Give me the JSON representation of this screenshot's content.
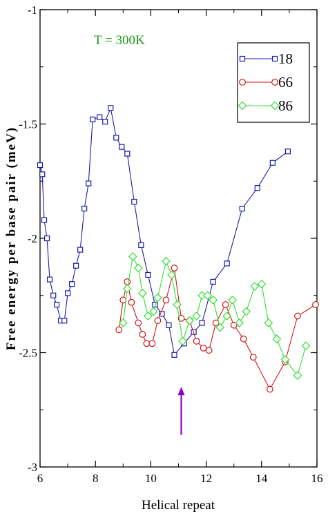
{
  "chart_data": {
    "type": "line",
    "xlabel": "Helical repeat",
    "ylabel": "Free energy per base pair (meV)",
    "xlim": [
      6,
      16
    ],
    "ylim": [
      -3,
      -1
    ],
    "x_ticks": [
      6,
      8,
      10,
      12,
      14,
      16
    ],
    "x_tick_labels": [
      "6",
      "8",
      "10",
      "12",
      "14",
      "16"
    ],
    "y_ticks": [
      -3,
      -2.5,
      -2,
      -1.5,
      -1
    ],
    "y_tick_labels": [
      "-3",
      "-2.5",
      "-2",
      "-1.5",
      "-1"
    ],
    "grid": false,
    "legend_position": "top-right",
    "annotation": {
      "text": "T = 300K",
      "color": "#1a9a1a"
    },
    "arrow": {
      "x": 11.1,
      "y_from": -2.86,
      "y_to": -2.65,
      "color": "#8a00c8"
    },
    "series": [
      {
        "name": "18",
        "color": "#1a1aa8",
        "marker": "square",
        "points": [
          [
            6.0,
            -1.68
          ],
          [
            6.08,
            -1.72
          ],
          [
            6.15,
            -1.92
          ],
          [
            6.25,
            -2.0
          ],
          [
            6.35,
            -2.18
          ],
          [
            6.48,
            -2.25
          ],
          [
            6.6,
            -2.29
          ],
          [
            6.75,
            -2.36
          ],
          [
            6.88,
            -2.36
          ],
          [
            7.0,
            -2.24
          ],
          [
            7.15,
            -2.2
          ],
          [
            7.3,
            -2.12
          ],
          [
            7.45,
            -2.05
          ],
          [
            7.6,
            -1.87
          ],
          [
            7.75,
            -1.76
          ],
          [
            7.9,
            -1.48
          ],
          [
            8.15,
            -1.47
          ],
          [
            8.35,
            -1.49
          ],
          [
            8.55,
            -1.43
          ],
          [
            8.75,
            -1.56
          ],
          [
            8.95,
            -1.6
          ],
          [
            9.15,
            -1.63
          ],
          [
            9.4,
            -1.84
          ],
          [
            9.65,
            -2.03
          ],
          [
            9.9,
            -2.16
          ],
          [
            10.15,
            -2.29
          ],
          [
            10.4,
            -2.33
          ],
          [
            10.65,
            -2.38
          ],
          [
            10.85,
            -2.51
          ],
          [
            11.2,
            -2.46
          ],
          [
            11.55,
            -2.41
          ],
          [
            11.85,
            -2.37
          ],
          [
            12.25,
            -2.19
          ],
          [
            12.75,
            -2.11
          ],
          [
            13.3,
            -1.87
          ],
          [
            13.85,
            -1.78
          ],
          [
            14.4,
            -1.67
          ],
          [
            14.95,
            -1.62
          ]
        ]
      },
      {
        "name": "66",
        "color": "#d21212",
        "marker": "circle",
        "points": [
          [
            8.85,
            -2.4
          ],
          [
            9.0,
            -2.27
          ],
          [
            9.15,
            -2.19
          ],
          [
            9.3,
            -2.28
          ],
          [
            9.55,
            -2.37
          ],
          [
            9.7,
            -2.42
          ],
          [
            9.85,
            -2.46
          ],
          [
            10.05,
            -2.46
          ],
          [
            10.25,
            -2.36
          ],
          [
            10.55,
            -2.27
          ],
          [
            10.85,
            -2.13
          ],
          [
            11.1,
            -2.35
          ],
          [
            11.4,
            -2.36
          ],
          [
            11.65,
            -2.45
          ],
          [
            11.9,
            -2.48
          ],
          [
            12.1,
            -2.49
          ],
          [
            12.35,
            -2.37
          ],
          [
            12.7,
            -2.29
          ],
          [
            13.0,
            -2.38
          ],
          [
            13.35,
            -2.44
          ],
          [
            13.7,
            -2.52
          ],
          [
            14.3,
            -2.66
          ],
          [
            14.85,
            -2.54
          ],
          [
            15.3,
            -2.34
          ],
          [
            15.95,
            -2.29
          ]
        ]
      },
      {
        "name": "86",
        "color": "#33dd33",
        "marker": "diamond",
        "points": [
          [
            9.0,
            -2.37
          ],
          [
            9.15,
            -2.22
          ],
          [
            9.35,
            -2.08
          ],
          [
            9.55,
            -2.13
          ],
          [
            9.7,
            -2.24
          ],
          [
            9.9,
            -2.34
          ],
          [
            10.1,
            -2.32
          ],
          [
            10.25,
            -2.26
          ],
          [
            10.55,
            -2.1
          ],
          [
            10.75,
            -2.16
          ],
          [
            10.95,
            -2.29
          ],
          [
            11.15,
            -2.45
          ],
          [
            11.4,
            -2.36
          ],
          [
            11.65,
            -2.34
          ],
          [
            11.85,
            -2.25
          ],
          [
            12.05,
            -2.25
          ],
          [
            12.25,
            -2.27
          ],
          [
            12.5,
            -2.39
          ],
          [
            12.75,
            -2.34
          ],
          [
            12.95,
            -2.27
          ],
          [
            13.2,
            -2.37
          ],
          [
            13.45,
            -2.32
          ],
          [
            13.75,
            -2.21
          ],
          [
            14.0,
            -2.2
          ],
          [
            14.25,
            -2.37
          ],
          [
            14.55,
            -2.44
          ],
          [
            14.85,
            -2.53
          ],
          [
            15.3,
            -2.6
          ],
          [
            15.6,
            -2.47
          ]
        ]
      }
    ]
  }
}
